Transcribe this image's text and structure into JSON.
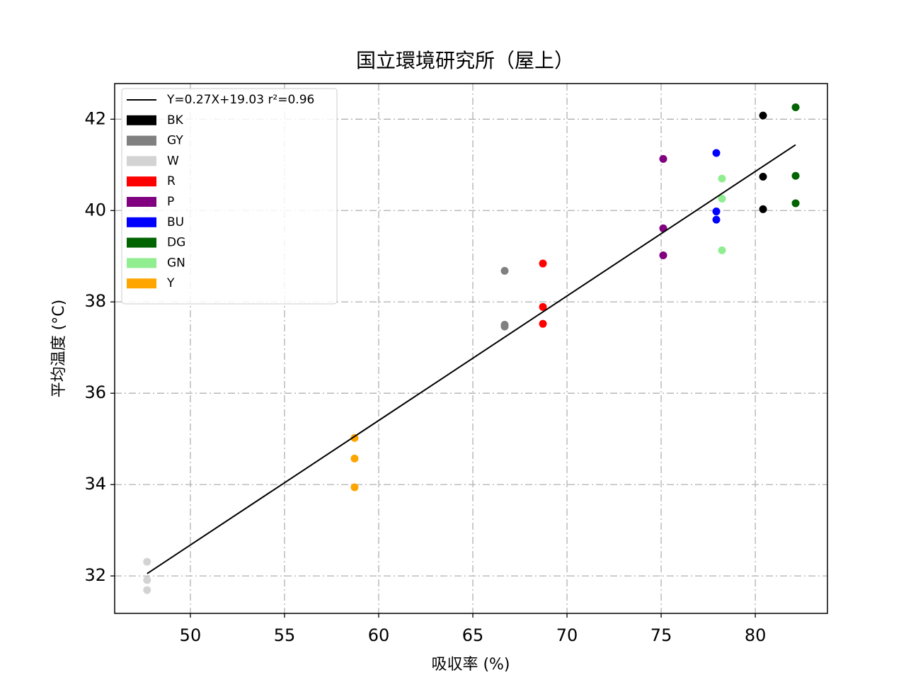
{
  "chart_data": {
    "type": "scatter",
    "title": "国立環境研究所（屋上）",
    "x_label": "吸収率 (%)",
    "y_label": "平均温度 (°C)",
    "xlim": [
      45.98,
      83.83
    ],
    "ylim": [
      31.18,
      42.78
    ],
    "xticks": [
      50,
      55,
      60,
      65,
      70,
      75,
      80
    ],
    "yticks": [
      32,
      34,
      36,
      38,
      40,
      42
    ],
    "grid": true,
    "legend": "upper left",
    "fit": {
      "name": "Y=0.27X+19.03  r²=0.96",
      "color": "#000000",
      "x": [
        47.7,
        82.14
      ],
      "values": [
        32.05,
        41.44
      ]
    },
    "series": [
      {
        "name": "BK",
        "color": "#000000",
        "x": [
          80.41,
          80.41,
          80.41
        ],
        "values": [
          42.08,
          40.74,
          40.03
        ]
      },
      {
        "name": "GY",
        "color": "#808080",
        "x": [
          66.69,
          66.69,
          66.69
        ],
        "values": [
          38.68,
          37.5,
          37.46
        ]
      },
      {
        "name": "W",
        "color": "#d3d3d3",
        "x": [
          47.7,
          47.7,
          47.7
        ],
        "values": [
          32.31,
          31.91,
          31.69
        ]
      },
      {
        "name": "R",
        "color": "#ff0000",
        "x": [
          68.72,
          68.72,
          68.72
        ],
        "values": [
          38.84,
          37.89,
          37.52
        ]
      },
      {
        "name": "P",
        "color": "#800080",
        "x": [
          75.11,
          75.11,
          75.11
        ],
        "values": [
          41.13,
          39.61,
          39.02
        ]
      },
      {
        "name": "BU",
        "color": "#0000ff",
        "x": [
          77.93,
          77.93,
          77.93
        ],
        "values": [
          41.26,
          39.98,
          39.8
        ]
      },
      {
        "name": "DG",
        "color": "#006400",
        "x": [
          82.14,
          82.14,
          82.14
        ],
        "values": [
          42.26,
          40.76,
          40.16
        ]
      },
      {
        "name": "GN",
        "color": "#90ee90",
        "x": [
          78.23,
          78.23,
          78.23
        ],
        "values": [
          40.7,
          40.26,
          39.13
        ]
      },
      {
        "name": "Y",
        "color": "#ffa500",
        "x": [
          58.72,
          58.72,
          58.72
        ],
        "values": [
          35.02,
          34.57,
          33.94
        ]
      }
    ]
  }
}
